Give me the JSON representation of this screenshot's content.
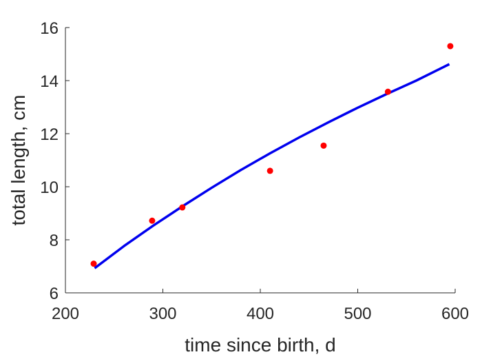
{
  "chart_data": {
    "type": "scatter",
    "xlabel": "time since birth, d",
    "ylabel": "total length, cm",
    "xlim": [
      200,
      600
    ],
    "ylim": [
      6,
      16
    ],
    "xticks": [
      200,
      300,
      400,
      500,
      600
    ],
    "yticks": [
      6,
      8,
      10,
      12,
      14,
      16
    ],
    "xtick_labels": [
      "200",
      "300",
      "400",
      "500",
      "600"
    ],
    "ytick_labels": [
      "6",
      "8",
      "10",
      "12",
      "14",
      "16"
    ],
    "grid": false,
    "series": [
      {
        "kind": "points",
        "color": "#ff0000",
        "x": [
          229,
          289,
          320,
          410,
          465,
          531,
          595
        ],
        "y": [
          7.1,
          8.72,
          9.22,
          10.6,
          11.55,
          13.58,
          15.3
        ]
      },
      {
        "kind": "line",
        "color": "#0000ee",
        "x": [
          230,
          260,
          290,
          320,
          350,
          380,
          410,
          440,
          470,
          500,
          530,
          560,
          594
        ],
        "y": [
          6.93,
          7.76,
          8.53,
          9.26,
          9.96,
          10.63,
          11.26,
          11.86,
          12.43,
          12.98,
          13.5,
          14.0,
          14.62
        ]
      }
    ]
  }
}
